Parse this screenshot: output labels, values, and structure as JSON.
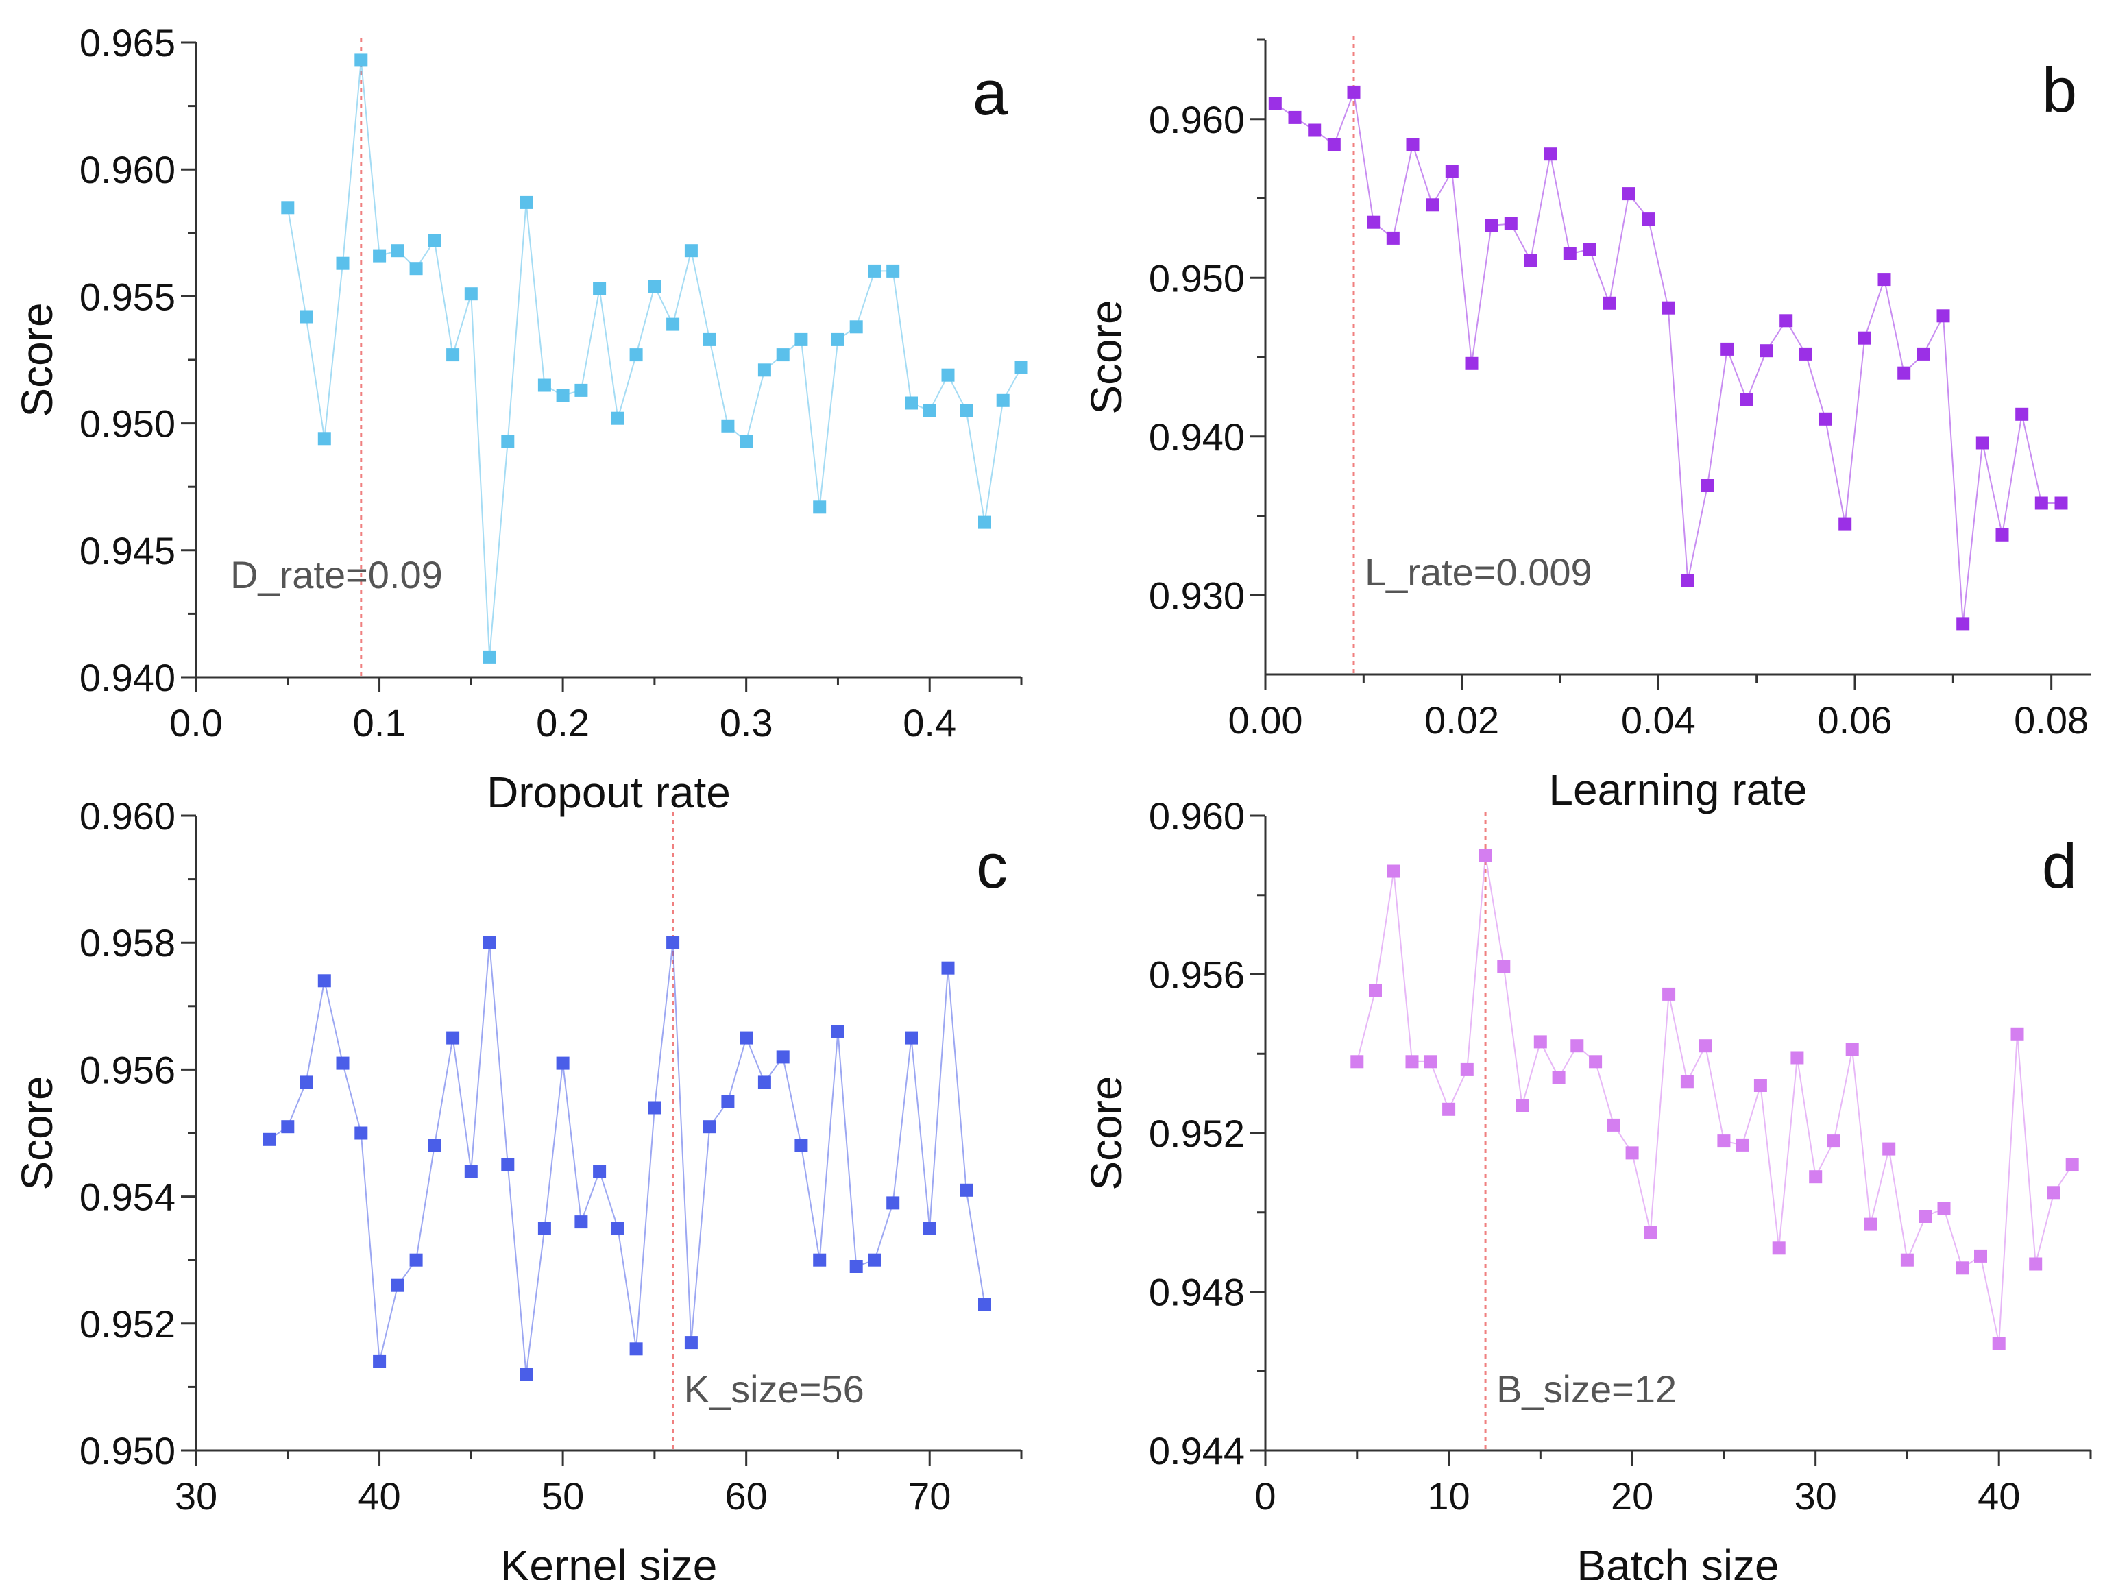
{
  "chart_data": [
    {
      "type": "line",
      "panel_label": "a",
      "xlabel": "Dropout rate",
      "ylabel": "Score",
      "xlim": [
        0.0,
        0.45
      ],
      "ylim": [
        0.94,
        0.965
      ],
      "xticks": [
        0.0,
        0.1,
        0.2,
        0.3,
        0.4
      ],
      "xtick_labels": [
        "0.0",
        "0.1",
        "0.2",
        "0.3",
        "0.4"
      ],
      "yticks": [
        0.94,
        0.945,
        0.95,
        0.955,
        0.96,
        0.965
      ],
      "ytick_labels": [
        "0.940",
        "0.945",
        "0.950",
        "0.955",
        "0.960",
        "0.965"
      ],
      "color": "#5bc0eb",
      "marker": "square",
      "annotation": {
        "x": 0.09,
        "text": "D_rate=0.09"
      },
      "x": [
        0.05,
        0.06,
        0.07,
        0.08,
        0.09,
        0.1,
        0.11,
        0.12,
        0.13,
        0.14,
        0.15,
        0.16,
        0.17,
        0.18,
        0.19,
        0.2,
        0.21,
        0.22,
        0.23,
        0.24,
        0.25,
        0.26,
        0.27,
        0.28,
        0.29,
        0.3,
        0.31,
        0.32,
        0.33,
        0.34,
        0.35,
        0.36,
        0.37,
        0.38,
        0.39,
        0.4,
        0.41,
        0.42,
        0.43,
        0.44,
        0.45
      ],
      "y": [
        0.9585,
        0.9542,
        0.9494,
        0.9563,
        0.9643,
        0.9566,
        0.9568,
        0.9561,
        0.9572,
        0.9527,
        0.9551,
        0.9408,
        0.9493,
        0.9587,
        0.9515,
        0.9511,
        0.9513,
        0.9553,
        0.9502,
        0.9527,
        0.9554,
        0.9539,
        0.9568,
        0.9533,
        0.9499,
        0.9493,
        0.9521,
        0.9527,
        0.9533,
        0.9467,
        0.9533,
        0.9538,
        0.956,
        0.956,
        0.9508,
        0.9505,
        0.9519,
        0.9505,
        0.9461,
        0.9509,
        0.9522
      ]
    },
    {
      "type": "line",
      "panel_label": "b",
      "xlabel": "Learning rate",
      "ylabel": "Score",
      "xlim": [
        0.0,
        0.084
      ],
      "ylim": [
        0.925,
        0.965
      ],
      "xticks": [
        0.0,
        0.02,
        0.04,
        0.06,
        0.08
      ],
      "xtick_labels": [
        "0.00",
        "0.02",
        "0.04",
        "0.06",
        "0.08"
      ],
      "yticks": [
        0.93,
        0.94,
        0.95,
        0.96
      ],
      "ytick_labels": [
        "0.930",
        "0.940",
        "0.950",
        "0.960"
      ],
      "color": "#9b30e6",
      "marker": "square",
      "annotation": {
        "x": 0.009,
        "text": "L_rate=0.009"
      },
      "x": [
        0.001,
        0.003,
        0.005,
        0.007,
        0.009,
        0.011,
        0.013,
        0.015,
        0.017,
        0.019,
        0.021,
        0.023,
        0.025,
        0.027,
        0.029,
        0.031,
        0.033,
        0.035,
        0.037,
        0.039,
        0.041,
        0.043,
        0.045,
        0.047,
        0.049,
        0.051,
        0.053,
        0.055,
        0.057,
        0.059,
        0.061,
        0.063,
        0.065,
        0.067,
        0.069,
        0.071,
        0.073,
        0.075,
        0.077,
        0.079,
        0.081
      ],
      "y": [
        0.961,
        0.9601,
        0.9593,
        0.9584,
        0.9617,
        0.9535,
        0.9525,
        0.9584,
        0.9546,
        0.9567,
        0.9446,
        0.9533,
        0.9534,
        0.9511,
        0.9578,
        0.9515,
        0.9518,
        0.9484,
        0.9553,
        0.9537,
        0.9481,
        0.9309,
        0.9369,
        0.9455,
        0.9423,
        0.9454,
        0.9473,
        0.9452,
        0.9411,
        0.9345,
        0.9462,
        0.9499,
        0.944,
        0.9452,
        0.9476,
        0.9282,
        0.9396,
        0.9338,
        0.9414,
        0.9358,
        0.9358
      ]
    },
    {
      "type": "line",
      "panel_label": "c",
      "xlabel": "Kernel size",
      "ylabel": "Score",
      "xlim": [
        30,
        75
      ],
      "ylim": [
        0.95,
        0.96
      ],
      "xticks": [
        30,
        40,
        50,
        60,
        70
      ],
      "xtick_labels": [
        "30",
        "40",
        "50",
        "60",
        "70"
      ],
      "yticks": [
        0.95,
        0.952,
        0.954,
        0.956,
        0.958,
        0.96
      ],
      "ytick_labels": [
        "0.950",
        "0.952",
        "0.954",
        "0.956",
        "0.958",
        "0.960"
      ],
      "color": "#4a5ee8",
      "marker": "square",
      "annotation": {
        "x": 56,
        "text": "K_size=56"
      },
      "x": [
        34,
        35,
        36,
        37,
        38,
        39,
        40,
        41,
        42,
        43,
        44,
        45,
        46,
        47,
        48,
        49,
        50,
        51,
        52,
        53,
        54,
        55,
        56,
        57,
        58,
        59,
        60,
        61,
        62,
        63,
        64,
        65,
        66,
        67,
        68,
        69,
        70,
        71,
        72,
        73
      ],
      "y": [
        0.9549,
        0.9551,
        0.9558,
        0.9574,
        0.9561,
        0.955,
        0.9514,
        0.9526,
        0.953,
        0.9548,
        0.9565,
        0.9544,
        0.958,
        0.9545,
        0.9512,
        0.9535,
        0.9561,
        0.9536,
        0.9544,
        0.9535,
        0.9516,
        0.9554,
        0.958,
        0.9517,
        0.9551,
        0.9555,
        0.9565,
        0.9558,
        0.9562,
        0.9548,
        0.953,
        0.9566,
        0.9529,
        0.953,
        0.9539,
        0.9565,
        0.9535,
        0.9576,
        0.9541,
        0.9523
      ]
    },
    {
      "type": "line",
      "panel_label": "d",
      "xlabel": "Batch size",
      "ylabel": "Score",
      "xlim": [
        0,
        45
      ],
      "ylim": [
        0.944,
        0.96
      ],
      "xticks": [
        0,
        10,
        20,
        30,
        40
      ],
      "xtick_labels": [
        "0",
        "10",
        "20",
        "30",
        "40"
      ],
      "yticks": [
        0.944,
        0.948,
        0.952,
        0.956,
        0.96
      ],
      "ytick_labels": [
        "0.944",
        "0.948",
        "0.952",
        "0.956",
        "0.960"
      ],
      "color": "#d47ef0",
      "marker": "square",
      "annotation": {
        "x": 12,
        "text": "B_size=12"
      },
      "x": [
        5,
        6,
        7,
        8,
        9,
        10,
        11,
        12,
        13,
        14,
        15,
        16,
        17,
        18,
        19,
        20,
        21,
        22,
        23,
        24,
        25,
        26,
        27,
        28,
        29,
        30,
        31,
        32,
        33,
        34,
        35,
        36,
        37,
        38,
        39,
        40,
        41,
        42,
        43,
        44
      ],
      "y": [
        0.9538,
        0.9556,
        0.9586,
        0.9538,
        0.9538,
        0.9526,
        0.9536,
        0.959,
        0.9562,
        0.9527,
        0.9543,
        0.9534,
        0.9542,
        0.9538,
        0.9522,
        0.9515,
        0.9495,
        0.9555,
        0.9533,
        0.9542,
        0.9518,
        0.9517,
        0.9532,
        0.9491,
        0.9539,
        0.9509,
        0.9518,
        0.9541,
        0.9497,
        0.9516,
        0.9488,
        0.9499,
        0.9501,
        0.9486,
        0.9489,
        0.9467,
        0.9545,
        0.9487,
        0.9505,
        0.9512
      ]
    }
  ]
}
